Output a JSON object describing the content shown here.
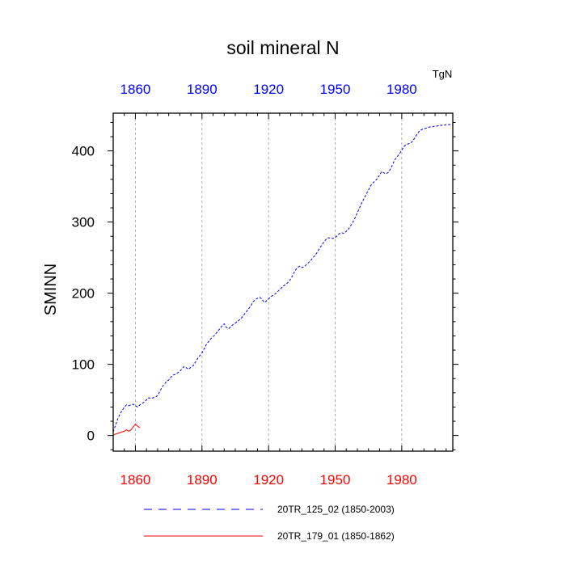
{
  "chart_data": {
    "type": "line",
    "title": "soil mineral N",
    "ylabel": "SMINN",
    "units": "TgN",
    "xlim": [
      1850,
      2003
    ],
    "ylim": [
      -22,
      453
    ],
    "x_ticks_major": [
      1860,
      1890,
      1920,
      1950,
      1980
    ],
    "x_tick_labels": [
      "1860",
      "1890",
      "1920",
      "1950",
      "1980"
    ],
    "y_ticks_major": [
      0,
      100,
      200,
      300,
      400
    ],
    "y_tick_labels": [
      "0",
      "100",
      "200",
      "300",
      "400"
    ],
    "top_axis_color": "#0000ff",
    "bottom_axis_color": "#ff0000",
    "grid": "vertical dashed at major x ticks",
    "legend_position": "bottom",
    "series": [
      {
        "name": "20TR_125_02 (1850-2003)",
        "color": "#0000ff",
        "dash": "dashed",
        "x": [
          1850,
          1851,
          1852,
          1853,
          1854,
          1855,
          1856,
          1857,
          1858,
          1859,
          1860,
          1861,
          1862,
          1863,
          1864,
          1865,
          1866,
          1867,
          1868,
          1869,
          1870,
          1871,
          1872,
          1873,
          1874,
          1875,
          1876,
          1877,
          1878,
          1879,
          1880,
          1881,
          1882,
          1883,
          1884,
          1885,
          1886,
          1887,
          1888,
          1889,
          1890,
          1891,
          1892,
          1893,
          1894,
          1895,
          1896,
          1897,
          1898,
          1899,
          1900,
          1901,
          1902,
          1903,
          1904,
          1905,
          1906,
          1907,
          1908,
          1909,
          1910,
          1911,
          1912,
          1913,
          1914,
          1915,
          1916,
          1917,
          1918,
          1919,
          1920,
          1921,
          1922,
          1923,
          1924,
          1925,
          1926,
          1927,
          1928,
          1929,
          1930,
          1931,
          1932,
          1933,
          1934,
          1935,
          1936,
          1937,
          1938,
          1939,
          1940,
          1941,
          1942,
          1943,
          1944,
          1945,
          1946,
          1947,
          1948,
          1949,
          1950,
          1951,
          1952,
          1953,
          1954,
          1955,
          1956,
          1957,
          1958,
          1959,
          1960,
          1961,
          1962,
          1963,
          1964,
          1965,
          1966,
          1967,
          1968,
          1969,
          1970,
          1971,
          1972,
          1973,
          1974,
          1975,
          1976,
          1977,
          1978,
          1979,
          1980,
          1981,
          1982,
          1983,
          1984,
          1985,
          1986,
          1987,
          1988,
          1989,
          1990,
          1991,
          1992,
          1993,
          1994,
          1995,
          1996,
          1997,
          1998,
          1999,
          2000,
          2001,
          2002,
          2003
        ],
        "values": [
          5,
          14,
          23,
          30,
          35,
          40,
          43,
          42,
          43,
          44,
          42,
          40,
          43,
          45,
          47,
          50,
          53,
          52,
          53,
          54,
          56,
          62,
          68,
          72,
          76,
          78,
          82,
          85,
          86,
          88,
          90,
          94,
          97,
          95,
          93,
          96,
          98,
          103,
          108,
          112,
          116,
          122,
          128,
          132,
          136,
          139,
          142,
          146,
          150,
          154,
          157,
          152,
          150,
          153,
          156,
          158,
          160,
          163,
          166,
          170,
          174,
          178,
          182,
          188,
          191,
          193,
          194,
          192,
          187,
          189,
          192,
          195,
          197,
          199,
          202,
          205,
          208,
          211,
          213,
          216,
          220,
          226,
          232,
          236,
          238,
          236,
          237,
          240,
          243,
          246,
          250,
          253,
          258,
          263,
          268,
          272,
          276,
          278,
          277,
          277,
          278,
          281,
          284,
          285,
          284,
          287,
          290,
          295,
          300,
          306,
          313,
          320,
          327,
          333,
          339,
          345,
          351,
          355,
          358,
          361,
          366,
          371,
          369,
          368,
          370,
          375,
          382,
          388,
          392,
          396,
          401,
          406,
          409,
          410,
          411,
          414,
          419,
          424,
          428,
          430,
          431,
          432,
          433,
          434,
          434,
          435,
          435,
          436,
          436,
          436,
          437,
          437,
          437,
          437
        ],
        "legend_dash": "dashed"
      },
      {
        "name": "20TR_179_01 (1850-1862)",
        "color": "#ff0000",
        "dash": "solid",
        "x": [
          1850,
          1851,
          1852,
          1853,
          1854,
          1855,
          1856,
          1857,
          1858,
          1859,
          1860,
          1861,
          1862
        ],
        "values": [
          0,
          2,
          3,
          4,
          5,
          6,
          8,
          6,
          8,
          12,
          16,
          13,
          11
        ]
      }
    ]
  }
}
